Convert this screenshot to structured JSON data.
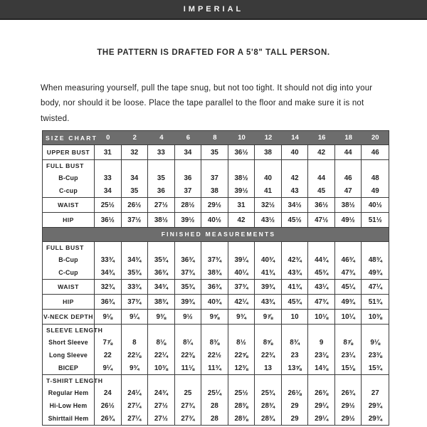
{
  "header": {
    "bar_title": "IMPERIAL",
    "tagline": "THE PATTERN IS DRAFTED FOR A  5'8\" TALL PERSON."
  },
  "intro": {
    "text": "When measuring yourself, pull the tape snug, but not too tight. It should not dig into your body, nor should it be loose. Place the tape parallel to the floor and make sure it is not twisted."
  },
  "colors": {
    "top_bar": "#3a3a3a",
    "table_band": "#6d6d6d",
    "border": "#3c3c3c"
  },
  "table": {
    "rows": [
      {
        "type": "sizes-band",
        "label": "SIZE CHART",
        "values": [
          "0",
          "2",
          "4",
          "6",
          "8",
          "10",
          "12",
          "14",
          "16",
          "18",
          "20"
        ]
      },
      {
        "type": "row",
        "label": "UPPER BUST",
        "values": [
          "31",
          "32",
          "33",
          "34",
          "35",
          "36½",
          "38",
          "40",
          "42",
          "44",
          "46"
        ]
      },
      {
        "type": "group",
        "title": "FULL BUST",
        "subrows": [
          {
            "label": "B-Cup",
            "values": [
              "33",
              "34",
              "35",
              "36",
              "37",
              "38½",
              "40",
              "42",
              "44",
              "46",
              "48"
            ]
          },
          {
            "label": "C-cup",
            "values": [
              "34",
              "35",
              "36",
              "37",
              "38",
              "39½",
              "41",
              "43",
              "45",
              "47",
              "49"
            ]
          }
        ]
      },
      {
        "type": "row",
        "label": "WAIST",
        "values": [
          "25½",
          "26½",
          "27½",
          "28½",
          "29½",
          "31",
          "32½",
          "34½",
          "36½",
          "38½",
          "40½"
        ]
      },
      {
        "type": "row",
        "label": "HIP",
        "values": [
          "36½",
          "37½",
          "38½",
          "39½",
          "40½",
          "42",
          "43½",
          "45½",
          "47½",
          "49½",
          "51½"
        ]
      },
      {
        "type": "band",
        "label": "FINISHED MEASUREMENTS"
      },
      {
        "type": "group",
        "title": "FULL BUST",
        "subrows": [
          {
            "label": "B-Cup",
            "values": [
              "33¾",
              "34¾",
              "35¾",
              "36¾",
              "37¾",
              "39¼",
              "40¾",
              "42¾",
              "44¾",
              "46¾",
              "48¾"
            ]
          },
          {
            "label": "C-Cup",
            "values": [
              "34¾",
              "35¾",
              "36¾",
              "37¾",
              "38¾",
              "40¼",
              "41¾",
              "43¾",
              "45¾",
              "47¾",
              "49¾"
            ]
          }
        ]
      },
      {
        "type": "row",
        "label": "WAIST",
        "values": [
          "32¾",
          "33¾",
          "34¾",
          "35¾",
          "36¾",
          "37¾",
          "39¾",
          "41¾",
          "43¼",
          "45¼",
          "47¼"
        ]
      },
      {
        "type": "row",
        "label": "HIP",
        "values": [
          "36¾",
          "37¾",
          "38¾",
          "39¾",
          "40¾",
          "42¼",
          "43¾",
          "45¾",
          "47¾",
          "49¾",
          "51¾"
        ]
      },
      {
        "type": "row",
        "label": "V-NECK DEPTH",
        "values": [
          "9⅛",
          "9¼",
          "9⅜",
          "9½",
          "9⅝",
          "9¾",
          "9⅞",
          "10",
          "10⅛",
          "10¼",
          "10⅜"
        ]
      },
      {
        "type": "group",
        "title": "SLEEVE LENGTH",
        "subrows": [
          {
            "label": "Short Sleeve",
            "values": [
              "7⅞",
              "8",
              "8⅛",
              "8¼",
              "8⅜",
              "8½",
              "8⅝",
              "8¾",
              "9",
              "8⅞",
              "9⅛"
            ]
          },
          {
            "label": "Long Sleeve",
            "values": [
              "22",
              "22⅛",
              "22¼",
              "22⅜",
              "22½",
              "22⅝",
              "22¾",
              "23",
              "23⅛",
              "23¼",
              "23⅜"
            ]
          },
          {
            "label": "BICEP",
            "values": [
              "9¼",
              "9¾",
              "10⅜",
              "11⅛",
              "11¾",
              "12⅜",
              "13",
              "13⅝",
              "14⅜",
              "15⅛",
              "15¾"
            ]
          }
        ]
      },
      {
        "type": "group",
        "title": "T-SHIRT LENGTH",
        "subrows": [
          {
            "label": "Regular Hem",
            "values": [
              "24",
              "24¼",
              "24¾",
              "25",
              "25¼",
              "25½",
              "25¾",
              "26⅛",
              "26⅜",
              "26¾",
              "27"
            ]
          },
          {
            "label": "Hi-Low Hem",
            "values": [
              "26½",
              "27¼",
              "27½",
              "27¾",
              "28",
              "28⅜",
              "28¾",
              "29",
              "29¼",
              "29½",
              "29¾"
            ]
          },
          {
            "label": "Shirttail Hem",
            "values": [
              "26¾",
              "27¼",
              "27½",
              "27¾",
              "28",
              "28⅜",
              "28¾",
              "29",
              "29¼",
              "29½",
              "29¾"
            ]
          }
        ]
      }
    ]
  }
}
